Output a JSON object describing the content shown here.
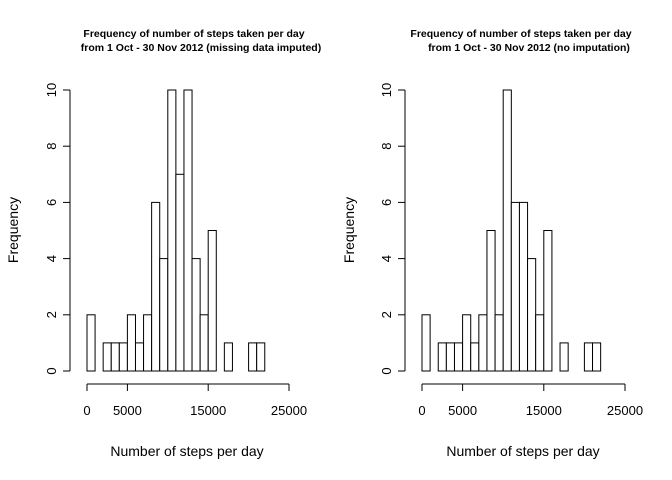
{
  "chart_data": [
    {
      "type": "bar",
      "title": "Frequency of number of steps taken per day",
      "subtitle": "from 1 Oct - 30 Nov 2012 (missing data imputed)",
      "xlabel": "Number of steps per day",
      "ylabel": "Frequency",
      "bin_width": 1000,
      "bin_start": 0,
      "values": [
        2,
        0,
        1,
        1,
        1,
        2,
        1,
        2,
        6,
        4,
        10,
        7,
        10,
        4,
        2,
        5,
        0,
        1,
        0,
        0,
        1,
        1
      ],
      "xlim": [
        0,
        25000
      ],
      "ylim": [
        0,
        10
      ],
      "xticks": [
        0,
        5000,
        15000,
        25000
      ],
      "xtick_labels": [
        "0",
        "5000",
        "15000",
        "25000"
      ],
      "yticks": [
        0,
        2,
        4,
        6,
        8,
        10
      ],
      "ytick_labels": [
        "0",
        "2",
        "4",
        "6",
        "8",
        "10"
      ],
      "grid": false
    },
    {
      "type": "bar",
      "title": "Frequency of number of steps taken per day",
      "subtitle": "from 1 Oct - 30 Nov 2012 (no imputation)",
      "xlabel": "Number of steps per day",
      "ylabel": "Frequency",
      "bin_width": 1000,
      "bin_start": 0,
      "values": [
        2,
        0,
        1,
        1,
        1,
        2,
        1,
        2,
        5,
        2,
        10,
        6,
        6,
        4,
        2,
        5,
        0,
        1,
        0,
        0,
        1,
        1
      ],
      "xlim": [
        0,
        25000
      ],
      "ylim": [
        0,
        10
      ],
      "xticks": [
        0,
        5000,
        15000,
        25000
      ],
      "xtick_labels": [
        "0",
        "5000",
        "15000",
        "25000"
      ],
      "yticks": [
        0,
        2,
        4,
        6,
        8,
        10
      ],
      "ytick_labels": [
        "0",
        "2",
        "4",
        "6",
        "8",
        "10"
      ],
      "grid": false
    }
  ]
}
